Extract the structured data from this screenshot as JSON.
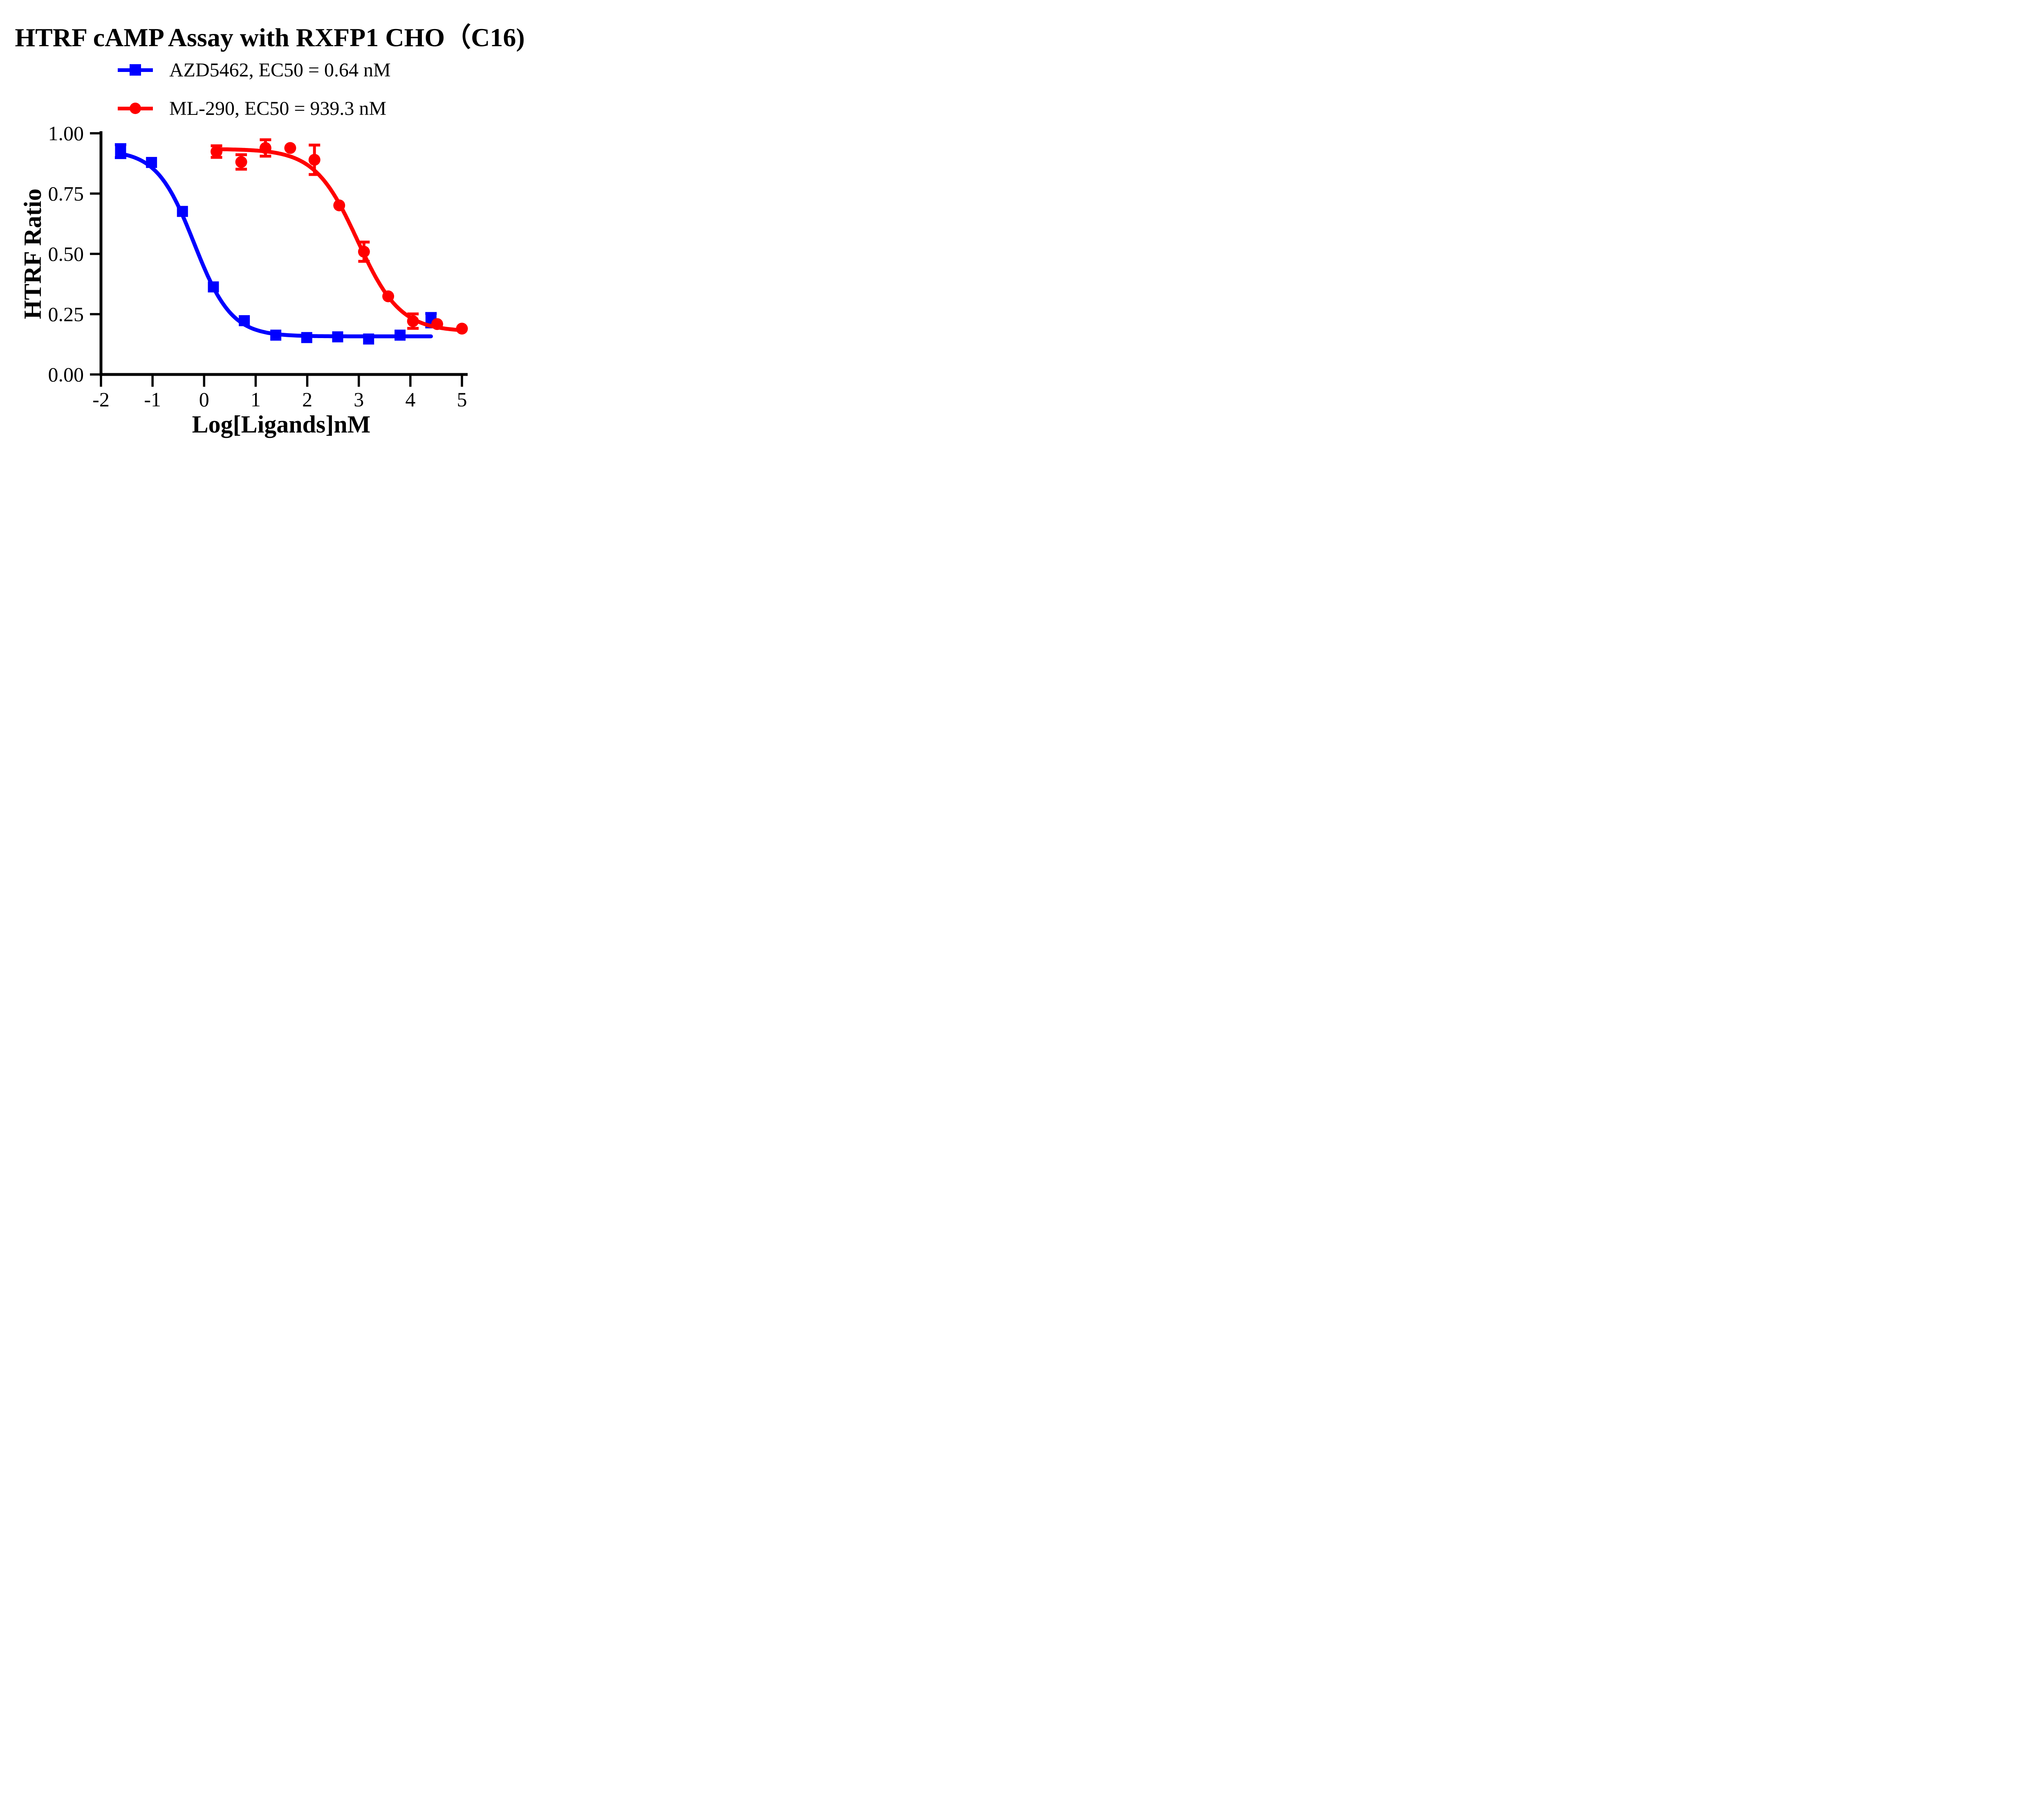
{
  "chart_data": {
    "type": "scatter",
    "title": "HTRF cAMP Assay with RXFP1 CHO（C16)",
    "xlabel": "Log[Ligands]nM",
    "ylabel": "HTRF Ratio",
    "xlim": [
      -2,
      5
    ],
    "ylim": [
      0,
      1
    ],
    "xticks": [
      -2,
      -1,
      0,
      1,
      2,
      3,
      4,
      5
    ],
    "yticks": [
      "0.00",
      "0.25",
      "0.50",
      "0.75",
      "1.00"
    ],
    "grid": false,
    "legend_position": "above plot, top-left",
    "curve_model": "four-parameter logistic dose-response fit",
    "series": [
      {
        "name": "AZD5462, EC50 = 0.64 nM",
        "ec50_label_nM": 0.64,
        "color": "#0000FF",
        "marker": "square",
        "x": [
          -1.62,
          -1.02,
          -0.42,
          0.18,
          0.78,
          1.39,
          1.99,
          2.59,
          3.19,
          3.8,
          4.4
        ],
        "y": [
          0.926,
          0.879,
          0.676,
          0.363,
          0.223,
          0.163,
          0.153,
          0.156,
          0.147,
          0.163,
          0.225
        ],
        "yerr": [
          0.027,
          0,
          0,
          0,
          0,
          0,
          0,
          0,
          0,
          0,
          0.028
        ],
        "fit": {
          "top": 0.93,
          "bottom": 0.158,
          "logEC50": -0.194,
          "hill": 1.2
        }
      },
      {
        "name": "ML-290, EC50 = 939.3 nM",
        "ec50_label_nM": 939.3,
        "color": "#FF0000",
        "marker": "circle",
        "x": [
          0.24,
          0.72,
          1.19,
          1.67,
          2.14,
          2.62,
          3.1,
          3.57,
          4.05,
          4.52,
          5.0
        ],
        "y": [
          0.924,
          0.881,
          0.939,
          0.939,
          0.89,
          0.701,
          0.509,
          0.324,
          0.221,
          0.209,
          0.19
        ],
        "yerr": [
          0.024,
          0.03,
          0.034,
          0,
          0.061,
          0,
          0.04,
          0,
          0.03,
          0,
          0
        ],
        "fit": {
          "top": 0.935,
          "bottom": 0.178,
          "logEC50": 2.973,
          "hill": 1.05
        }
      }
    ]
  }
}
